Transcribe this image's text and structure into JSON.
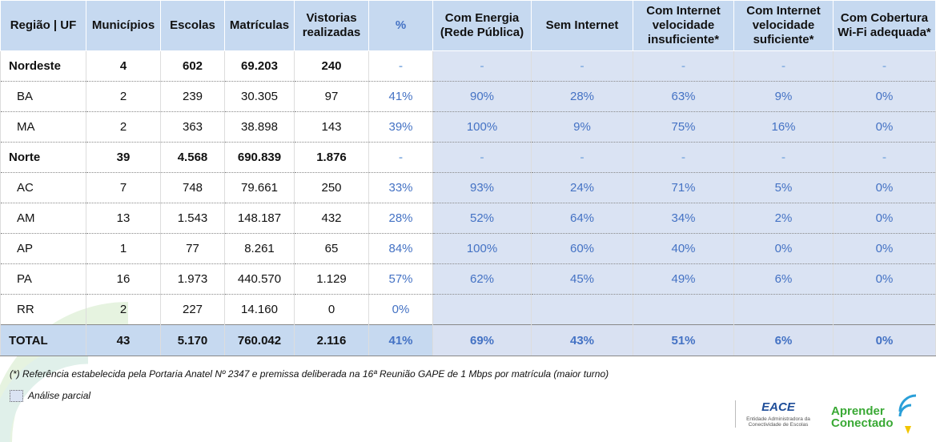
{
  "table": {
    "header": [
      "Região | UF",
      "Municípios",
      "Escolas",
      "Matrículas",
      "Vistorias realizadas",
      "%",
      "Com Energia (Rede Pública)",
      "Sem Internet",
      "Com Internet velocidade insuficiente*",
      "Com Internet velocidade suficiente*",
      "Com Cobertura Wi-Fi adequada*"
    ],
    "regions": [
      {
        "row": [
          "Nordeste",
          "4",
          "602",
          "69.203",
          "240",
          "-",
          "-",
          "-",
          "-",
          "-",
          "-"
        ],
        "states": [
          [
            "BA",
            "2",
            "239",
            "30.305",
            "97",
            "41%",
            "90%",
            "28%",
            "63%",
            "9%",
            "0%"
          ],
          [
            "MA",
            "2",
            "363",
            "38.898",
            "143",
            "39%",
            "100%",
            "9%",
            "75%",
            "16%",
            "0%"
          ]
        ]
      },
      {
        "row": [
          "Norte",
          "39",
          "4.568",
          "690.839",
          "1.876",
          "-",
          "-",
          "-",
          "-",
          "-",
          "-"
        ],
        "states": [
          [
            "AC",
            "7",
            "748",
            "79.661",
            "250",
            "33%",
            "93%",
            "24%",
            "71%",
            "5%",
            "0%"
          ],
          [
            "AM",
            "13",
            "1.543",
            "148.187",
            "432",
            "28%",
            "52%",
            "64%",
            "34%",
            "2%",
            "0%"
          ],
          [
            "AP",
            "1",
            "77",
            "8.261",
            "65",
            "84%",
            "100%",
            "60%",
            "40%",
            "0%",
            "0%"
          ],
          [
            "PA",
            "16",
            "1.973",
            "440.570",
            "1.129",
            "57%",
            "62%",
            "45%",
            "49%",
            "6%",
            "0%"
          ],
          [
            "RR",
            "2",
            "227",
            "14.160",
            "0",
            "0%"
          ]
        ]
      }
    ],
    "total": [
      "TOTAL",
      "43",
      "5.170",
      "760.042",
      "2.116",
      "41%",
      "69%",
      "43%",
      "51%",
      "6%",
      "0%"
    ]
  },
  "footnote": "(*) Referência estabelecida pela Portaria Anatel Nº 2347 e premissa deliberada na 16ª Reunião GAPE de 1 Mbps por matrícula (maior turno)",
  "legend": "Análise parcial",
  "logos": {
    "eace": "EACE",
    "eace_sub": "Entidade Administradora da Conectividade de Escolas",
    "aprender": "Aprender Conectado"
  }
}
